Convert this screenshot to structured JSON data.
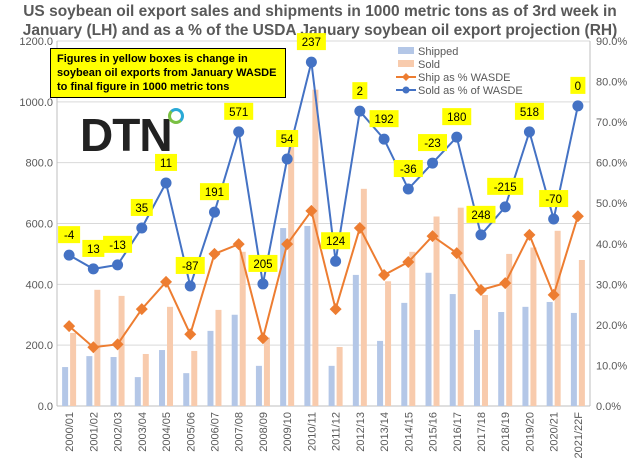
{
  "title": "US soybean oil export sales and shipments in 1000 metric tons as of 3rd week in January (LH) and as a % of the USDA January soybean oil export projection (RH)",
  "note": "Figures in yellow boxes is change in soybean oil exports from January WASDE to final figure in 1000 metric tons",
  "logo": "DTN",
  "chart_data": {
    "type": "bar+line",
    "categories": [
      "2000/01",
      "2001/02",
      "2002/03",
      "2003/04",
      "2004/05",
      "2005/06",
      "2006/07",
      "2007/08",
      "2008/09",
      "2009/10",
      "2010/11",
      "2011/12",
      "2012/13",
      "2013/14",
      "2014/15",
      "2015/16",
      "2016/17",
      "2017/18",
      "2018/19",
      "2019/20",
      "2020/21",
      "2021/22F"
    ],
    "y_left": {
      "range": [
        0,
        1200
      ],
      "ticks": [
        "0.0",
        "200.0",
        "400.0",
        "600.0",
        "800.0",
        "1000.0",
        "1200.0"
      ]
    },
    "y_right": {
      "range": [
        0,
        90
      ],
      "ticks": [
        "0.0%",
        "10.0%",
        "20.0%",
        "30.0%",
        "40.0%",
        "50.0%",
        "60.0%",
        "70.0%",
        "80.0%",
        "90.0%"
      ]
    },
    "grid": true,
    "legend_position": "top-right",
    "series": [
      {
        "name": "Shipped",
        "type": "bar",
        "axis": "left",
        "color": "#b4c7e7",
        "values": [
          128,
          164,
          161,
          95,
          184,
          108,
          247,
          300,
          132,
          585,
          592,
          132,
          431,
          214,
          339,
          438,
          368,
          250,
          309,
          326,
          342,
          306
        ]
      },
      {
        "name": "Sold",
        "type": "bar",
        "axis": "left",
        "color": "#f8cbad",
        "values": [
          240,
          382,
          362,
          171,
          326,
          181,
          316,
          507,
          225,
          898,
          1040,
          194,
          714,
          410,
          507,
          623,
          652,
          365,
          500,
          521,
          576,
          480
        ]
      },
      {
        "name": "Ship as % WASDE",
        "type": "line",
        "axis": "right",
        "color": "#ed7d31",
        "marker": "diamond",
        "values": [
          19.7,
          14.5,
          15.2,
          23.9,
          30.6,
          17.7,
          37.5,
          39.9,
          16.7,
          39.9,
          48.1,
          23.9,
          43.9,
          32.3,
          35.5,
          41.9,
          37.7,
          28.6,
          30.3,
          42.2,
          27.4,
          46.8
        ]
      },
      {
        "name": "Sold as % of WASDE",
        "type": "line",
        "axis": "right",
        "color": "#4472c4",
        "marker": "circle",
        "values": [
          37.2,
          33.8,
          34.8,
          43.9,
          55.0,
          29.6,
          47.8,
          67.6,
          30.1,
          60.9,
          84.8,
          35.7,
          72.7,
          65.8,
          53.5,
          59.9,
          66.3,
          42.2,
          49.1,
          67.6,
          46.1,
          74.0
        ]
      }
    ],
    "annotations": [
      "-4",
      "13",
      "-13",
      "35",
      "11",
      "-87",
      "191",
      "571",
      "205",
      "54",
      "237",
      "124",
      "2",
      "192",
      "-36",
      "-23",
      "180",
      "248",
      "-215",
      "518",
      "-70",
      "0"
    ]
  }
}
